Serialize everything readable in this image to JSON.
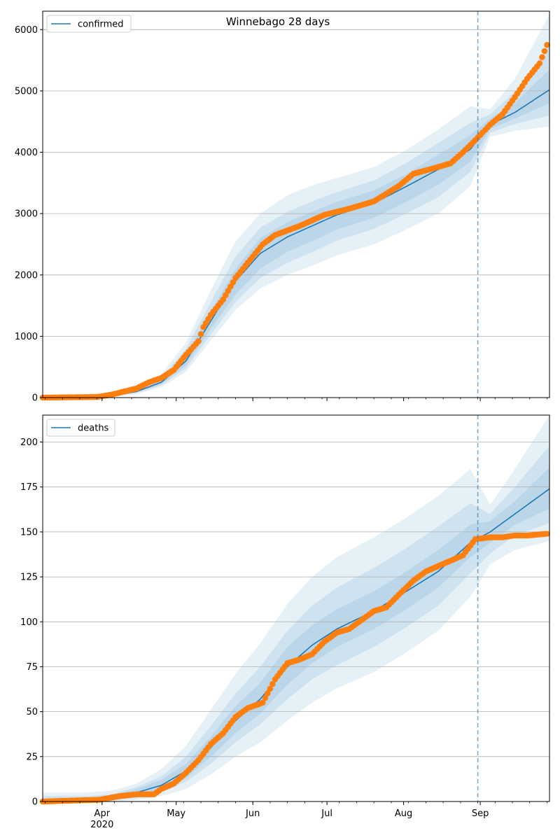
{
  "figure": {
    "title": "Winnebago 28 days"
  },
  "colors": {
    "model": "#1f77b4",
    "observed": "#ff7f0e",
    "band": "#1f77b4",
    "grid": "#b0b0b0",
    "forecast_line": "#1f77b4"
  },
  "x_axis": {
    "month_labels": [
      {
        "date": "2020-04-01",
        "label": "Apr"
      },
      {
        "date": "2020-05-01",
        "label": "May"
      },
      {
        "date": "2020-06-01",
        "label": "Jun"
      },
      {
        "date": "2020-07-01",
        "label": "Jul"
      },
      {
        "date": "2020-08-01",
        "label": "Aug"
      },
      {
        "date": "2020-09-01",
        "label": "Sep"
      }
    ],
    "year_label": "2020",
    "range": [
      "2020-03-08",
      "2020-09-29"
    ],
    "forecast_start": "2020-08-31"
  },
  "chart_data": [
    {
      "type": "line",
      "legend": "confirmed",
      "legend_position": "top-left",
      "grid": "horizontal",
      "ylim": [
        0,
        6300
      ],
      "yticks": [
        0,
        1000,
        2000,
        3000,
        4000,
        5000,
        6000
      ],
      "model": {
        "x": [
          "2020-03-08",
          "2020-03-25",
          "2020-04-05",
          "2020-04-15",
          "2020-04-25",
          "2020-05-05",
          "2020-05-15",
          "2020-05-25",
          "2020-06-04",
          "2020-06-15",
          "2020-06-25",
          "2020-07-05",
          "2020-07-20",
          "2020-08-01",
          "2020-08-15",
          "2020-08-28",
          "2020-09-05",
          "2020-09-15",
          "2020-09-29"
        ],
        "y": [
          0,
          5,
          30,
          100,
          250,
          600,
          1250,
          1900,
          2350,
          2620,
          2800,
          2980,
          3170,
          3420,
          3720,
          4050,
          4450,
          4650,
          5020
        ],
        "bands": [
          {
            "lower": [
              0,
              0,
              10,
              60,
              170,
              420,
              930,
              1430,
              1780,
              2000,
              2150,
              2320,
              2500,
              2720,
              3000,
              3450,
              4250,
              4350,
              4420
            ],
            "upper": [
              5,
              20,
              70,
              170,
              380,
              900,
              1750,
              2550,
              3000,
              3300,
              3460,
              3580,
              3760,
              4010,
              4370,
              4750,
              4700,
              5200,
              6250
            ]
          },
          {
            "lower": [
              0,
              0,
              15,
              75,
              200,
              480,
              1030,
              1560,
              1950,
              2200,
              2370,
              2560,
              2750,
              2980,
              3270,
              3680,
              4320,
              4460,
              4600
            ],
            "upper": [
              4,
              15,
              55,
              145,
              330,
              790,
              1560,
              2300,
              2770,
              3030,
              3200,
              3350,
              3540,
              3800,
              4150,
              4480,
              4620,
              4990,
              5750
            ]
          },
          {
            "lower": [
              0,
              1,
              20,
              85,
              220,
              530,
              1120,
              1680,
              2100,
              2380,
              2550,
              2740,
              2930,
              3170,
              3470,
              3850,
              4380,
              4550,
              4800
            ],
            "upper": [
              3,
              10,
              45,
              125,
              290,
              700,
              1400,
              2100,
              2600,
              2860,
              3030,
              3190,
              3380,
              3620,
              3960,
              4280,
              4550,
              4800,
              5350
            ]
          }
        ]
      },
      "observed": {
        "x": [
          "2020-03-08",
          "2020-03-30",
          "2020-04-05",
          "2020-04-10",
          "2020-04-15",
          "2020-04-20",
          "2020-04-25",
          "2020-04-30",
          "2020-05-05",
          "2020-05-10",
          "2020-05-12",
          "2020-05-15",
          "2020-05-20",
          "2020-05-25",
          "2020-05-30",
          "2020-06-05",
          "2020-06-10",
          "2020-06-20",
          "2020-06-30",
          "2020-07-10",
          "2020-07-20",
          "2020-07-30",
          "2020-08-05",
          "2020-08-15",
          "2020-08-20",
          "2020-08-25",
          "2020-08-30",
          "2020-09-05",
          "2020-09-10",
          "2020-09-15",
          "2020-09-20",
          "2020-09-25",
          "2020-09-28"
        ],
        "y": [
          0,
          10,
          50,
          100,
          150,
          250,
          320,
          450,
          700,
          920,
          1150,
          1350,
          1600,
          1950,
          2200,
          2500,
          2650,
          2800,
          2980,
          3080,
          3200,
          3450,
          3650,
          3760,
          3820,
          4000,
          4200,
          4450,
          4620,
          4900,
          5200,
          5450,
          5750
        ]
      }
    },
    {
      "type": "line",
      "legend": "deaths",
      "legend_position": "top-left",
      "grid": "horizontal",
      "ylim": [
        0,
        215
      ],
      "yticks": [
        0,
        25,
        50,
        75,
        100,
        125,
        150,
        175,
        200
      ],
      "model": {
        "x": [
          "2020-03-08",
          "2020-03-25",
          "2020-04-05",
          "2020-04-15",
          "2020-04-25",
          "2020-05-05",
          "2020-05-15",
          "2020-05-25",
          "2020-06-04",
          "2020-06-15",
          "2020-06-25",
          "2020-07-05",
          "2020-07-20",
          "2020-08-01",
          "2020-08-15",
          "2020-08-28",
          "2020-09-05",
          "2020-09-15",
          "2020-09-29"
        ],
        "y": [
          0,
          0.5,
          2,
          5,
          9,
          17,
          30,
          45,
          57,
          75,
          87,
          96,
          106,
          116,
          128,
          144,
          150,
          160,
          174
        ],
        "bands": [
          {
            "lower": [
              0,
              0,
              0,
              1,
              3,
              7,
              15,
              25,
              33,
              45,
              55,
              63,
              72,
              82,
              95,
              114,
              132,
              140,
              145
            ],
            "upper": [
              5,
              5,
              6,
              10,
              18,
              31,
              51,
              71,
              88,
              110,
              125,
              136,
              147,
              157,
              170,
              185,
              165,
              185,
              215
            ]
          },
          {
            "lower": [
              0,
              0,
              0.5,
              2,
              5,
              11,
              21,
              33,
              43,
              57,
              68,
              76,
              86,
              96,
              109,
              127,
              138,
              148,
              155
            ],
            "upper": [
              3,
              3,
              4,
              8,
              14,
              25,
              42,
              60,
              75,
              95,
              109,
              119,
              130,
              140,
              153,
              166,
              160,
              175,
              198
            ]
          },
          {
            "lower": [
              0,
              0,
              1,
              3,
              6,
              13,
              25,
              38,
              49,
              65,
              77,
              86,
              96,
              106,
              119,
              136,
              144,
              154,
              163
            ],
            "upper": [
              1.5,
              2,
              3,
              7,
              12,
              21,
              36,
              53,
              66,
              86,
              98,
              107,
              117,
              127,
              140,
              154,
              156,
              167,
              186
            ]
          }
        ]
      },
      "observed": {
        "x": [
          "2020-03-08",
          "2020-03-31",
          "2020-04-08",
          "2020-04-15",
          "2020-04-22",
          "2020-04-25",
          "2020-04-30",
          "2020-05-05",
          "2020-05-10",
          "2020-05-15",
          "2020-05-20",
          "2020-05-25",
          "2020-05-30",
          "2020-06-05",
          "2020-06-10",
          "2020-06-15",
          "2020-06-20",
          "2020-06-25",
          "2020-06-30",
          "2020-07-05",
          "2020-07-10",
          "2020-07-15",
          "2020-07-20",
          "2020-07-25",
          "2020-07-30",
          "2020-08-05",
          "2020-08-10",
          "2020-08-15",
          "2020-08-20",
          "2020-08-25",
          "2020-08-30",
          "2020-09-05",
          "2020-09-10",
          "2020-09-15",
          "2020-09-20",
          "2020-09-28"
        ],
        "y": [
          0,
          1,
          3,
          4,
          4,
          7,
          10,
          16,
          23,
          32,
          38,
          47,
          52,
          55,
          68,
          77,
          79,
          82,
          89,
          94,
          96,
          101,
          106,
          108,
          115,
          123,
          128,
          131,
          134,
          137,
          146,
          147,
          147,
          148,
          148,
          149
        ]
      }
    }
  ]
}
